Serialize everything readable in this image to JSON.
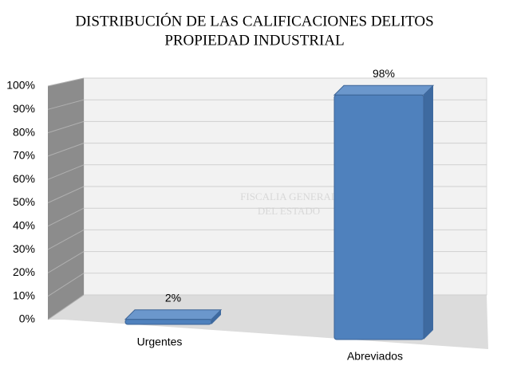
{
  "chart_data": {
    "type": "bar3d",
    "title": [
      "DISTRIBUCIÓN DE LAS CALIFICACIONES DELITOS",
      "PROPIEDAD INDUSTRIAL"
    ],
    "watermark": [
      "FISCALIA GENERAL",
      "DEL ESTADO"
    ],
    "categories": [
      "Urgentes",
      "Abreviados"
    ],
    "values": [
      2,
      98
    ],
    "value_labels": [
      "2%",
      "98%"
    ],
    "color": "#4f81bd",
    "ylim": [
      0,
      100
    ],
    "yticks": [
      {
        "value": 0,
        "label": "0%"
      },
      {
        "value": 10,
        "label": "10%"
      },
      {
        "value": 20,
        "label": "20%"
      },
      {
        "value": 30,
        "label": "30%"
      },
      {
        "value": 40,
        "label": "40%"
      },
      {
        "value": 50,
        "label": "50%"
      },
      {
        "value": 60,
        "label": "60%"
      },
      {
        "value": 70,
        "label": "70%"
      },
      {
        "value": 80,
        "label": "80%"
      },
      {
        "value": 90,
        "label": "90%"
      },
      {
        "value": 100,
        "label": "100%"
      }
    ],
    "grid": true
  }
}
